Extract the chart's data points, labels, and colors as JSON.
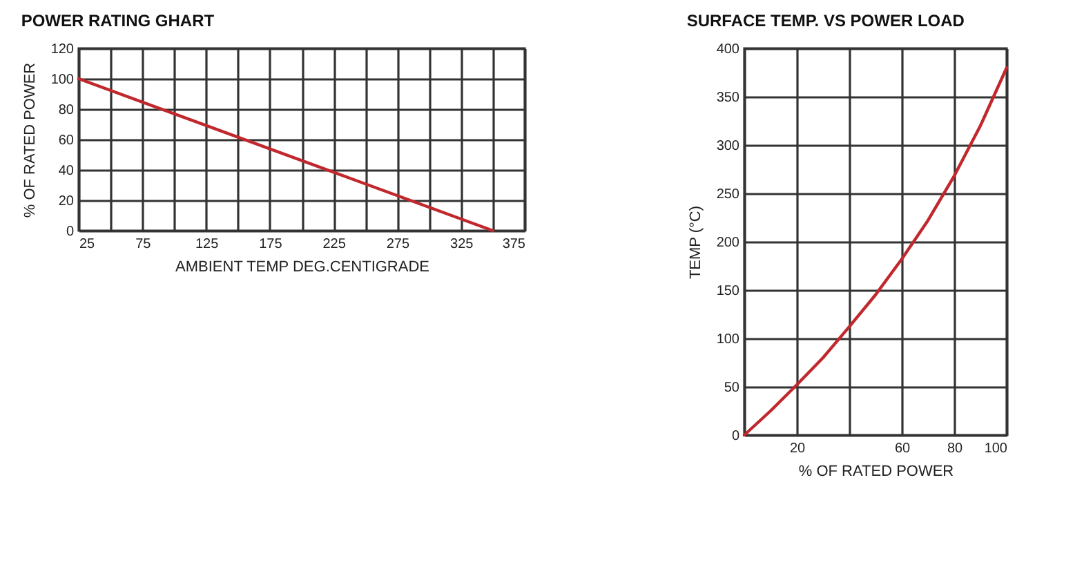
{
  "chart_data": [
    {
      "type": "line",
      "title": "POWER RATING GHART",
      "xlabel": "AMBIENT TEMP DEG.CENTIGRADE",
      "ylabel": "% OF RATED POWER",
      "x": [
        25,
        350
      ],
      "series": [
        {
          "color": "#c0282d",
          "values": [
            100,
            0
          ]
        }
      ],
      "xlim": [
        25,
        375
      ],
      "xticks": [
        25,
        {
          "value": 50,
          "label": null
        },
        75,
        {
          "value": 100,
          "label": null
        },
        125,
        {
          "value": 150,
          "label": null
        },
        175,
        {
          "value": 200,
          "label": null
        },
        225,
        {
          "value": 250,
          "label": null
        },
        275,
        {
          "value": 300,
          "label": null
        },
        325,
        {
          "value": 350,
          "label": null
        },
        375
      ],
      "ylim": [
        0,
        120
      ],
      "yticks": [
        0,
        20,
        40,
        60,
        80,
        100,
        120
      ],
      "grid": true,
      "marker": "none"
    },
    {
      "type": "line",
      "title": "SURFACE TEMP. VS POWER LOAD",
      "xlabel": "% OF RATED POWER",
      "ylabel": "TEMP (°C)",
      "x": [
        0,
        10,
        20,
        30,
        40,
        50,
        60,
        70,
        80,
        90,
        100
      ],
      "series": [
        {
          "color": "#c0282d",
          "values": [
            0,
            25,
            52,
            80,
            112,
            145,
            182,
            222,
            268,
            320,
            380
          ]
        }
      ],
      "xlim": [
        0,
        100
      ],
      "xticks": [
        {
          "value": 0,
          "label": null
        },
        20,
        {
          "value": 40,
          "label": null
        },
        60,
        80,
        100
      ],
      "ylim": [
        0,
        400
      ],
      "yticks": [
        0,
        50,
        100,
        150,
        200,
        250,
        300,
        350,
        400
      ],
      "grid": true,
      "marker": "none"
    }
  ]
}
